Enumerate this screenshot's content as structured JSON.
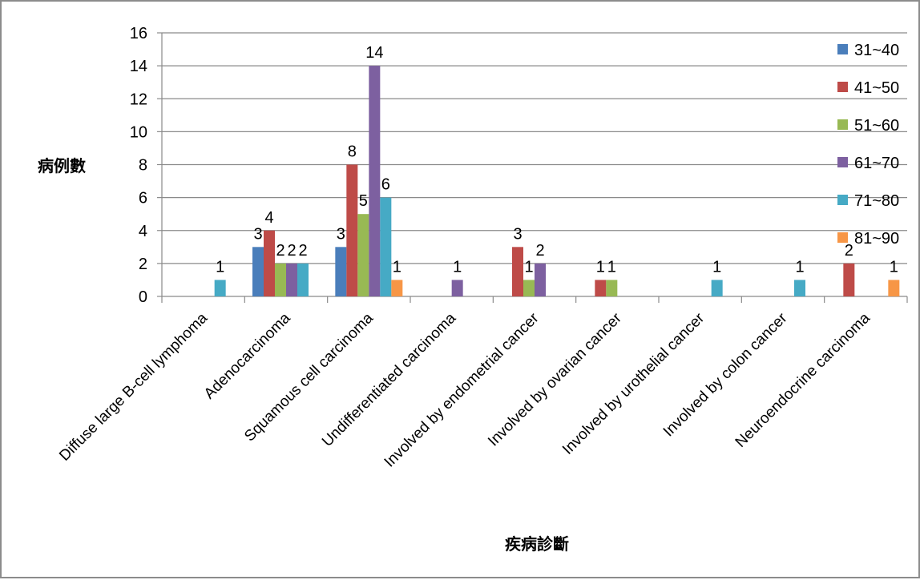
{
  "chart_data": {
    "type": "bar",
    "title": "",
    "xlabel": "疾病診斷",
    "ylabel": "病例數",
    "ylim": [
      0,
      16
    ],
    "yticks": [
      "0",
      "2",
      "4",
      "6",
      "8",
      "10",
      "12",
      "14",
      "16"
    ],
    "grid": true,
    "legend_position": "right",
    "categories": [
      "Diffuse large B-cell lymphoma",
      "Adenocarcinoma",
      "Squamous cell carcinoma",
      "Undifferentiated carcinoma",
      "Involved by endometrial cancer",
      "Involved by ovarian cancer",
      "Involved by urothelial cancer",
      "Involved by colon cancer",
      "Neuroendocrine carcinoma"
    ],
    "series": [
      {
        "name": "31~40",
        "color": "#4a7ebb",
        "values": [
          0,
          3,
          3,
          0,
          0,
          0,
          0,
          0,
          0
        ]
      },
      {
        "name": "41~50",
        "color": "#be4b48",
        "values": [
          0,
          4,
          8,
          0,
          3,
          1,
          0,
          0,
          2
        ]
      },
      {
        "name": "51~60",
        "color": "#98b954",
        "values": [
          0,
          2,
          5,
          0,
          1,
          1,
          0,
          0,
          0
        ]
      },
      {
        "name": "61~70",
        "color": "#7d60a0",
        "values": [
          0,
          2,
          14,
          1,
          2,
          0,
          0,
          0,
          0
        ]
      },
      {
        "name": "71~80",
        "color": "#46aac5",
        "values": [
          1,
          2,
          6,
          0,
          0,
          0,
          1,
          1,
          0
        ]
      },
      {
        "name": "81~90",
        "color": "#f79646",
        "values": [
          0,
          0,
          1,
          0,
          0,
          0,
          0,
          0,
          1
        ]
      }
    ]
  }
}
